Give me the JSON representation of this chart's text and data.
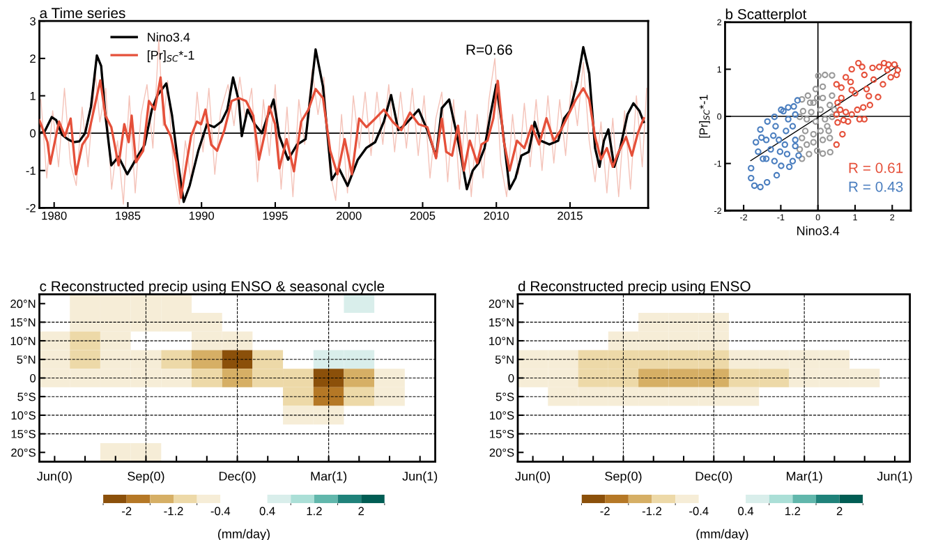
{
  "chart_data": [
    {
      "type": "line",
      "title": "a Time series",
      "xlim": [
        1979.0,
        2020.3
      ],
      "ylim": [
        -2,
        3
      ],
      "xticks": [
        1980,
        1985,
        1990,
        1995,
        2000,
        2005,
        2010,
        2015
      ],
      "yticks": [
        -2,
        -1,
        0,
        1,
        2,
        3
      ],
      "legend": "top left",
      "grid": false,
      "annotations": [
        "R=0.66"
      ],
      "ref_lines": [
        {
          "axis": "y",
          "value": 0,
          "color": "#000000"
        }
      ],
      "series": [
        {
          "color": "#f4c2b8",
          "x": [
            1979.1,
            1979.5,
            1979.9,
            1980.3,
            1980.7,
            1981.1,
            1981.5,
            1981.9,
            1982.3,
            1982.8,
            1983.1,
            1983.5,
            1983.9,
            1984.3,
            1984.7,
            1985.1,
            1985.5,
            1985.9,
            1986.3,
            1986.7,
            1987.1,
            1987.4,
            1987.7,
            1988.1,
            1988.5,
            1988.9,
            1989.3,
            1989.7,
            1990.1,
            1990.5,
            1990.9,
            1991.3,
            1991.8,
            1992.2,
            1992.6,
            1993.0,
            1993.4,
            1993.8,
            1994.2,
            1994.6,
            1995.0,
            1995.4,
            1995.8,
            1996.2,
            1996.6,
            1997.0,
            1997.5,
            1997.9,
            1998.3,
            1998.7,
            1999.1,
            1999.5,
            1999.9,
            2000.3,
            2000.7,
            2001.1,
            2001.5,
            2001.9,
            2002.3,
            2002.7,
            2003.1,
            2003.5,
            2003.9,
            2004.3,
            2004.7,
            2005.1,
            2005.5,
            2005.9,
            2006.3,
            2006.7,
            2007.1,
            2007.5,
            2007.9,
            2008.3,
            2008.7,
            2009.1,
            2009.5,
            2009.9,
            2010.3,
            2010.7,
            2011.1,
            2011.5,
            2011.9,
            2012.3,
            2012.7,
            2013.1,
            2013.5,
            2013.9,
            2014.3,
            2014.7,
            2015.1,
            2015.5,
            2015.9,
            2016.3,
            2016.7,
            2017.1,
            2017.5,
            2017.9,
            2018.3,
            2018.7,
            2019.1,
            2019.5,
            2019.9,
            2020.2
          ],
          "values": [
            0.9,
            -1.2,
            0.6,
            -0.9,
            1.2,
            -0.8,
            -1.4,
            0.7,
            -0.9,
            1.6,
            0.3,
            1.2,
            -1.5,
            -0.2,
            -1.9,
            1.0,
            -1.6,
            0.5,
            1.3,
            -0.4,
            2.5,
            0.2,
            1.4,
            -1.0,
            -1.9,
            -0.2,
            -1.3,
            1.1,
            -0.5,
            1.2,
            -1.1,
            0.6,
            1.3,
            0.2,
            1.5,
            0.3,
            1.2,
            -1.3,
            0.9,
            -0.6,
            1.3,
            -1.5,
            0.7,
            -1.7,
            0.9,
            -0.3,
            1.7,
            0.5,
            1.5,
            -1.0,
            -1.8,
            0.5,
            -1.6,
            1.0,
            -0.4,
            1.1,
            -0.6,
            1.1,
            -0.3,
            1.3,
            -0.5,
            1.1,
            -0.4,
            1.2,
            -0.6,
            1.0,
            -1.2,
            0.4,
            1.1,
            -1.3,
            0.9,
            -1.5,
            0.6,
            -1.7,
            0.5,
            -1.2,
            0.9,
            2.0,
            -0.8,
            -1.7,
            0.5,
            -1.1,
            0.8,
            -0.9,
            0.9,
            -1.0,
            1.0,
            -0.8,
            0.9,
            -0.6,
            1.4,
            0.2,
            1.9,
            -0.2,
            -1.3,
            0.3,
            -1.6,
            0.4,
            -1.7,
            0.6,
            -1.5,
            1.0,
            -0.9,
            1.2
          ]
        },
        {
          "name": "Nino3.4",
          "color": "#000000",
          "x": [
            1979.0,
            1979.35,
            1979.84,
            1980.14,
            1980.53,
            1980.92,
            1981.32,
            1981.71,
            1982.1,
            1982.5,
            1982.9,
            1983.19,
            1983.48,
            1983.88,
            1984.37,
            1984.96,
            1985.65,
            1986.14,
            1986.63,
            1987.02,
            1987.61,
            1988.0,
            1988.4,
            1988.79,
            1989.19,
            1989.78,
            1990.37,
            1990.86,
            1991.35,
            1991.75,
            1992.14,
            1992.53,
            1992.73,
            1993.12,
            1993.61,
            1994.1,
            1994.5,
            1994.89,
            1995.28,
            1995.87,
            1996.47,
            1997.06,
            1997.74,
            1998.24,
            1998.83,
            1999.32,
            1999.91,
            2000.6,
            2001.19,
            2001.78,
            2002.37,
            2002.86,
            2003.35,
            2003.84,
            2004.73,
            2005.32,
            2005.91,
            2006.3,
            2006.8,
            2007.3,
            2007.6,
            2008.0,
            2008.4,
            2008.8,
            2009.2,
            2009.6,
            2010.0,
            2010.4,
            2010.9,
            2011.3,
            2011.7,
            2012.2,
            2012.6,
            2013.0,
            2013.6,
            2014.2,
            2014.6,
            2015.0,
            2015.5,
            2015.9,
            2016.3,
            2016.7,
            2017.0,
            2017.3,
            2017.6,
            2018.0,
            2018.4,
            2018.9,
            2019.3,
            2019.7,
            2020.0
          ],
          "values": [
            0,
            0.04,
            0.43,
            0.35,
            -0.04,
            -0.16,
            -0.24,
            -0.22,
            0,
            0.71,
            2.08,
            1.8,
            0.47,
            -0.86,
            -0.63,
            -1.1,
            -0.63,
            -0.31,
            0.63,
            1.02,
            1.33,
            0.47,
            -0.78,
            -1.84,
            -1.41,
            -0.47,
            0.24,
            0.16,
            0.31,
            0.63,
            1.49,
            0.86,
            -0.08,
            0.63,
            0.24,
            0,
            0.47,
            0.9,
            -0.08,
            -0.71,
            -0.31,
            -0.16,
            2.24,
            1.25,
            -1.25,
            -0.94,
            -1.41,
            -0.71,
            -0.39,
            -0.24,
            0.31,
            1.02,
            0.08,
            0.24,
            0.63,
            0.08,
            -0.63,
            0.67,
            0.9,
            0.0,
            -0.6,
            -1.5,
            -1.0,
            -0.8,
            -0.4,
            0.5,
            1.3,
            0.2,
            -1.5,
            -1.2,
            -0.6,
            -0.5,
            0.3,
            -0.2,
            -0.3,
            -0.2,
            0.4,
            0.6,
            1.4,
            2.3,
            1.6,
            -0.4,
            -0.9,
            -0.2,
            0.1,
            -0.9,
            -0.4,
            0.5,
            0.8,
            0.6,
            0.3
          ]
        },
        {
          "name": "[Pr]$_{SC}$*-1",
          "color": "#e5503a",
          "x": [
            1979.0,
            1979.55,
            1979.74,
            1980.04,
            1980.33,
            1980.73,
            1981.12,
            1981.48,
            1981.91,
            1982.3,
            1982.7,
            1983.13,
            1983.48,
            1983.88,
            1984.37,
            1984.76,
            1985.06,
            1985.26,
            1985.55,
            1986.04,
            1986.43,
            1986.83,
            1987.22,
            1987.51,
            1987.91,
            1988.3,
            1988.6,
            1988.99,
            1989.29,
            1989.68,
            1989.97,
            1990.27,
            1990.66,
            1991.06,
            1991.55,
            1992.04,
            1992.53,
            1993.02,
            1993.51,
            1993.9,
            1994.3,
            1994.59,
            1994.99,
            1995.28,
            1995.77,
            1996.27,
            1996.76,
            1997.25,
            1997.74,
            1998.24,
            1998.73,
            1999.22,
            1999.71,
            2000.2,
            2000.69,
            2001.19,
            2001.78,
            2002.37,
            2002.96,
            2003.55,
            2004.14,
            2004.73,
            2005.32,
            2005.91,
            2006.3,
            2006.6,
            2007.0,
            2007.4,
            2007.8,
            2008.2,
            2008.7,
            2009.0,
            2009.4,
            2009.8,
            2010.1,
            2010.5,
            2010.9,
            2011.4,
            2011.9,
            2012.4,
            2012.9,
            2013.4,
            2013.9,
            2014.4,
            2014.9,
            2015.4,
            2015.9,
            2016.3,
            2016.7,
            2017.1,
            2017.5,
            2017.9,
            2018.3,
            2018.8,
            2019.2,
            2019.6,
            2020.0
          ],
          "values": [
            0.35,
            -0.24,
            -0.82,
            -0.24,
            0.31,
            -0.08,
            0.39,
            -1.1,
            -0.31,
            -0.08,
            0.63,
            1.41,
            0.47,
            0.16,
            -0.86,
            0.24,
            -0.24,
            0.47,
            -0.78,
            -0.47,
            0.86,
            0.63,
            1.49,
            0.24,
            -0.08,
            -0.78,
            -1.73,
            -0.78,
            -0.08,
            0.31,
            0.24,
            0.63,
            -0.31,
            -0.47,
            0.08,
            0.86,
            0.94,
            0.86,
            0.47,
            -0.71,
            0,
            0.71,
            0.24,
            -0.94,
            -0.16,
            -1.02,
            0.31,
            0.63,
            1.18,
            0.94,
            -0.47,
            -1.1,
            -0.16,
            -1.1,
            0.39,
            0.16,
            0.39,
            0.63,
            0.31,
            0.08,
            0.55,
            0.24,
            0.16,
            -0.67,
            0.39,
            -0.5,
            -0.6,
            0.2,
            -1.0,
            -0.2,
            -0.8,
            -0.3,
            -0.2,
            0.4,
            1.4,
            -0.2,
            -1.0,
            -0.2,
            -0.4,
            0.2,
            -0.3,
            0.4,
            -0.2,
            0.1,
            0.5,
            0.9,
            1.2,
            0.9,
            -0.1,
            -0.7,
            -0.4,
            -0.9,
            -0.5,
            -0.1,
            -0.6,
            0.0,
            0.4
          ]
        }
      ]
    },
    {
      "type": "scatter",
      "title": "b Scatterplot",
      "xlabel": "Nino3.4",
      "ylabel": "[Pr]$_{SC}$*-1",
      "xlim": [
        -2.5,
        2.5
      ],
      "ylim": [
        -2,
        2
      ],
      "xticks": [
        -2,
        -1,
        0,
        1,
        2
      ],
      "yticks": [
        -2,
        -1,
        0,
        1,
        2
      ],
      "grid": false,
      "legend": false,
      "ref_lines": [
        {
          "axis": "x",
          "value": 0,
          "color": "#000000"
        },
        {
          "axis": "y",
          "value": 0,
          "color": "#000000"
        }
      ],
      "series": [
        {
          "color": "#999999",
          "marker": "circle",
          "x": [
            0.01,
            0.19,
            0.38,
            -0.06,
            0.13,
            -0.27,
            -0.43,
            -0.12,
            0.13,
            0.38,
            0.32,
            0.07,
            -0.18,
            -0.4,
            -0.49,
            -0.3,
            -0.06,
            0.19,
            0.38,
            0.25,
            0.07,
            -0.12,
            -0.34,
            -0.43,
            -0.3,
            -0.12,
            0.13,
            0.32,
            -0.02,
            -0.24,
            -0.43,
            -0.49,
            0.13,
            0.33,
            0.29,
            0.44,
            -0.21,
            -0.02
          ],
          "values": [
            0.86,
            0.88,
            0.87,
            0.58,
            0.63,
            0.44,
            0.36,
            0.29,
            0.39,
            0.44,
            0.24,
            0.14,
            0.09,
            0.11,
            -0.01,
            -0.06,
            -0.11,
            -0.06,
            -0.01,
            -0.21,
            -0.31,
            -0.38,
            -0.31,
            -0.46,
            -0.6,
            -0.55,
            -0.5,
            -0.46,
            -0.73,
            -0.8,
            -0.9,
            -0.7,
            -0.79,
            -0.76,
            -0.31,
            0.14,
            0.29,
            0.39
          ]
        },
        {
          "name": "R = 0.61",
          "color": "#e5503a",
          "marker": "circle",
          "x": [
            1.09,
            1.19,
            0.91,
            0.75,
            0.5,
            0.63,
            0.88,
            1.25,
            1.47,
            1.65,
            1.78,
            1.9,
            2.06,
            2.12,
            1.96,
            1.75,
            1.62,
            1.4,
            1.22,
            1.12,
            0.91,
            0.75,
            0.6,
            0.5,
            0.53,
            0.66,
            0.5,
            0.69,
            1.0,
            1.31,
            0.91,
            0.63,
            0.53,
            1.5,
            1.87,
            2.15,
            1.06,
            1.25,
            0.81,
            1.37
          ],
          "values": [
            1.13,
            1.05,
            1.0,
            0.83,
            0.68,
            0.61,
            0.73,
            0.88,
            1.03,
            1.05,
            1.13,
            1.1,
            1.1,
            0.88,
            0.83,
            0.68,
            0.41,
            0.24,
            0.19,
            -0.06,
            0.04,
            0.09,
            0.14,
            0.04,
            -0.13,
            -0.38,
            -0.6,
            -0.08,
            0.49,
            0.58,
            0.56,
            0.39,
            0.29,
            0.78,
            0.98,
            0.98,
            0.14,
            -0.06,
            -0.11,
            0.43
          ]
        },
        {
          "name": "R = 0.43",
          "color": "#4a7ebf",
          "marker": "circle",
          "x": [
            -1.8,
            -1.8,
            -1.71,
            -1.55,
            -1.37,
            -1.11,
            -1.67,
            -1.55,
            -1.36,
            -1.17,
            -0.99,
            -0.8,
            -0.65,
            -0.55,
            -0.61,
            -0.68,
            -0.61,
            -0.61,
            -0.52,
            -0.68,
            -0.77,
            -0.99,
            -1.17,
            -1.39,
            -1.48,
            -1.61,
            -1.39,
            -1.2,
            -1.05,
            -0.86,
            -0.8,
            -0.89,
            -1.02,
            -0.83,
            -1.27,
            -1.52,
            -1.14,
            -0.93
          ],
          "values": [
            -1.1,
            -1.31,
            -1.47,
            -1.5,
            -1.4,
            -1.25,
            -0.55,
            -0.28,
            -0.11,
            -0.01,
            0.14,
            0.19,
            0.21,
            0.34,
            0.04,
            -0.21,
            -0.5,
            -0.63,
            -0.83,
            -0.95,
            -1.07,
            -1.05,
            -0.95,
            -0.9,
            -0.9,
            -0.75,
            -0.5,
            -0.41,
            -0.5,
            -0.31,
            -0.06,
            -0.6,
            -0.75,
            -0.8,
            -0.7,
            -0.45,
            -0.21,
            0.11
          ]
        },
        {
          "type": "line",
          "color": "#000000",
          "x": [
            -1.81,
            2.15
          ],
          "values": [
            -0.94,
            1.07
          ]
        }
      ]
    },
    {
      "type": "heatmap",
      "title": "c Reconstructed precip using ENSO & seasonal cycle",
      "clabel": "(mm/day)",
      "clim": [
        -2.4,
        2.4
      ],
      "cticks": [
        -2,
        -1.2,
        -0.4,
        0.4,
        1.2,
        2
      ],
      "grid": true,
      "categories": [
        "Jun(0)",
        null,
        null,
        "Sep(0)",
        null,
        null,
        "Dec(0)",
        null,
        null,
        "Mar(1)",
        null,
        null,
        "Jun(1)"
      ],
      "y_categories": [
        "20°N",
        "15°N",
        "10°N",
        "5°N",
        "0",
        "5°S",
        "10°S",
        "15°S",
        "20°S"
      ],
      "cells": [
        [
          null,
          -0.6,
          -0.6,
          -0.6,
          -0.6,
          null,
          null,
          null,
          null,
          null,
          0.6,
          null,
          null
        ],
        [
          null,
          -0.6,
          -0.6,
          -0.6,
          -0.6,
          -0.6,
          null,
          null,
          null,
          null,
          null,
          null,
          null
        ],
        [
          -0.6,
          -1.0,
          -0.6,
          null,
          null,
          -0.6,
          -0.6,
          null,
          null,
          null,
          null,
          null,
          null
        ],
        [
          -0.6,
          -1.0,
          -0.6,
          -0.6,
          -1.0,
          -1.4,
          -2.2,
          -1.0,
          null,
          0.6,
          0.6,
          null,
          null
        ],
        [
          -0.6,
          -0.6,
          -0.6,
          -0.6,
          -0.6,
          -1.0,
          -1.4,
          -1.0,
          -1.0,
          -2.2,
          -1.4,
          -0.6,
          null
        ],
        [
          null,
          null,
          null,
          null,
          null,
          null,
          null,
          null,
          -1.0,
          -1.8,
          -1.0,
          -0.6,
          null
        ],
        [
          null,
          null,
          null,
          null,
          null,
          null,
          null,
          null,
          -0.6,
          -0.6,
          null,
          null,
          null
        ],
        [
          null,
          null,
          null,
          null,
          null,
          null,
          null,
          null,
          null,
          null,
          null,
          null,
          null
        ],
        [
          null,
          null,
          -0.6,
          -0.6,
          null,
          null,
          null,
          null,
          null,
          null,
          null,
          null,
          null
        ]
      ]
    },
    {
      "type": "heatmap",
      "title": "d Reconstructed precip using ENSO",
      "clabel": "(mm/day)",
      "clim": [
        -2.4,
        2.4
      ],
      "cticks": [
        -2,
        -1.2,
        -0.4,
        0.4,
        1.2,
        2
      ],
      "grid": true,
      "categories": [
        "Jun(0)",
        null,
        null,
        "Sep(0)",
        null,
        null,
        "Dec(0)",
        null,
        null,
        "Mar(1)",
        null,
        null,
        "Jun(1)"
      ],
      "y_categories": [
        "20°N",
        "15°N",
        "10°N",
        "5°N",
        "0",
        "5°S",
        "10°S",
        "15°S",
        "20°S"
      ],
      "cells": [
        [
          null,
          null,
          null,
          null,
          null,
          null,
          null,
          null,
          null,
          null,
          null,
          null,
          null
        ],
        [
          null,
          null,
          null,
          null,
          -0.6,
          -0.6,
          -0.6,
          null,
          null,
          null,
          null,
          null,
          null
        ],
        [
          null,
          null,
          null,
          -0.6,
          -0.6,
          -0.6,
          -0.6,
          null,
          null,
          null,
          null,
          null,
          null
        ],
        [
          -0.6,
          -0.6,
          -1.0,
          -1.0,
          -1.0,
          -1.0,
          -1.0,
          -0.6,
          -0.6,
          -0.6,
          -0.6,
          null,
          null
        ],
        [
          -0.6,
          -0.6,
          -1.0,
          -1.0,
          -1.4,
          -1.4,
          -1.4,
          -1.0,
          -1.0,
          -0.6,
          -0.6,
          -0.6,
          null
        ],
        [
          null,
          -0.6,
          -0.6,
          -0.6,
          -0.6,
          -0.6,
          -0.6,
          -0.6,
          null,
          null,
          null,
          null,
          null
        ],
        [
          null,
          null,
          null,
          null,
          null,
          null,
          null,
          null,
          null,
          null,
          null,
          null,
          null
        ],
        [
          null,
          null,
          null,
          null,
          null,
          null,
          null,
          null,
          null,
          null,
          null,
          null,
          null
        ],
        [
          null,
          null,
          null,
          null,
          null,
          null,
          null,
          null,
          null,
          null,
          null,
          null,
          null
        ]
      ]
    }
  ]
}
